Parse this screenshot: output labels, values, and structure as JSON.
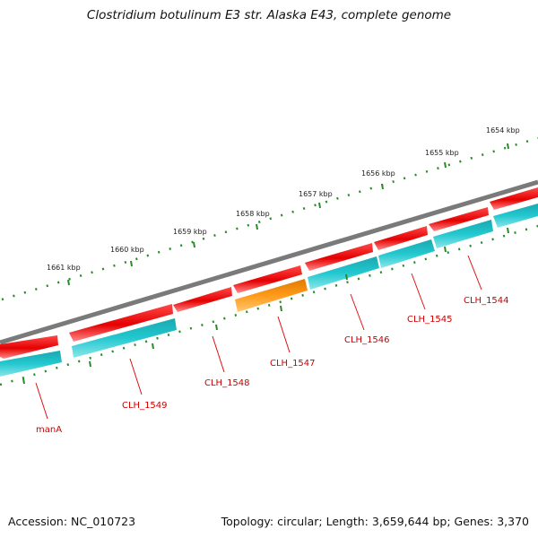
{
  "title": "Clostridium botulinum E3 str. Alaska E43, complete genome",
  "footer": {
    "accession": "Accession: NC_010723",
    "summary": "Topology: circular; Length: 3,659,644 bp; Genes: 3,370"
  },
  "colors": {
    "backbone": "#7a7a7a",
    "cds_forward": "#ee1111",
    "cds_reverse": "#22c6cc",
    "highlight": "#ff9a1a",
    "ticks": "#2a8a2a",
    "gene_label": "#cc0000"
  },
  "kbp_ticks": [
    {
      "label": "1654 kbp"
    },
    {
      "label": "1655 kbp"
    },
    {
      "label": "1656 kbp"
    },
    {
      "label": "1657 kbp"
    },
    {
      "label": "1658 kbp"
    },
    {
      "label": "1659 kbp"
    },
    {
      "label": "1660 kbp"
    },
    {
      "label": "1661 kbp"
    }
  ],
  "gene_labels": [
    {
      "name": "CLH_1544"
    },
    {
      "name": "CLH_1545"
    },
    {
      "name": "CLH_1546"
    },
    {
      "name": "CLH_1547"
    },
    {
      "name": "CLH_1548"
    },
    {
      "name": "CLH_1549"
    },
    {
      "name": "manA"
    }
  ]
}
